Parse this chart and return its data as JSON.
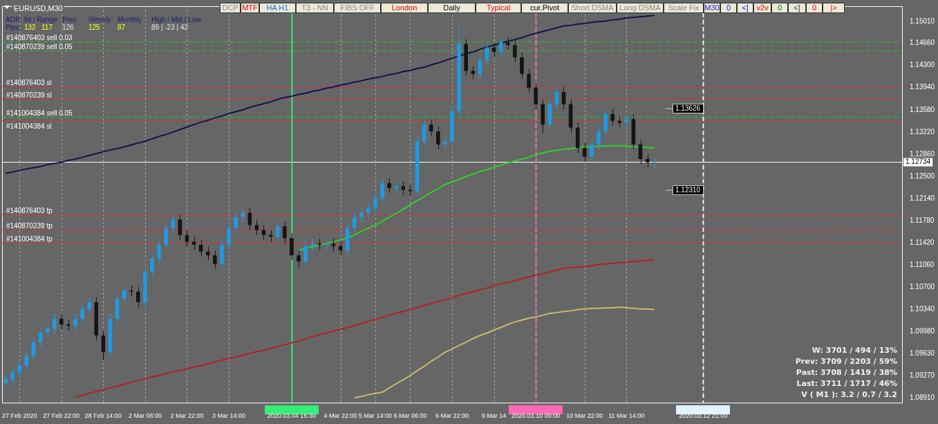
{
  "chart_data": {
    "type": "candlestick",
    "title": "EURUSD,M30",
    "categories": [
      null,
      null,
      "27 Feb 2020",
      null,
      null,
      null,
      null,
      null,
      "27 Feb 22:00",
      null,
      null,
      null,
      null,
      null,
      "28 Feb 14:00",
      null,
      null,
      null,
      null,
      null,
      "2 Mar 06:00",
      null,
      null,
      null,
      null,
      null,
      "2 Mar 22:00",
      null,
      null,
      null,
      null,
      null,
      "3 Mar 14:00",
      null,
      null,
      null,
      null,
      null,
      null,
      null,
      null,
      "2020.03.04 16:30",
      null,
      null,
      null,
      null,
      null,
      null,
      "4 Mar 22:00",
      null,
      null,
      null,
      null,
      "5 Mar 14:00",
      null,
      null,
      null,
      null,
      "6 Mar 06:00",
      null,
      null,
      null,
      null,
      null,
      "6 Mar 22:00",
      null,
      null,
      null,
      null,
      null,
      "9 Mar 14",
      null,
      null,
      null,
      null,
      null,
      "2020.03.10 09:00",
      null,
      null,
      null,
      null,
      null,
      null,
      "10 Mar 22:00",
      null,
      null,
      null,
      null,
      null,
      "11 Mar 14:00",
      null,
      null,
      null,
      null,
      null,
      null,
      null,
      null,
      null,
      null,
      "2020.03.12 21:00",
      null,
      null,
      null,
      null,
      null,
      null,
      null,
      null,
      null,
      null,
      null,
      null,
      null,
      null,
      null,
      null,
      null,
      null,
      null,
      null,
      null,
      null,
      null,
      null,
      null,
      null,
      null,
      null
    ],
    "ohlc": [
      [
        1.0915,
        1.0929,
        1.0907,
        1.0921
      ],
      [
        1.0921,
        1.094,
        1.0913,
        1.0932
      ],
      [
        1.0932,
        1.0951,
        1.0924,
        1.0943
      ],
      [
        1.0943,
        1.0967,
        1.0935,
        1.0959
      ],
      [
        1.0959,
        1.0989,
        1.0951,
        1.0981
      ],
      [
        1.0981,
        1.1005,
        1.0973,
        1.0997
      ],
      [
        1.0997,
        1.1011,
        1.0989,
        1.1003
      ],
      [
        1.1003,
        1.1027,
        1.0995,
        1.1019
      ],
      [
        1.1019,
        1.1027,
        1.1002,
        1.101
      ],
      [
        1.101,
        1.1018,
        1.1,
        1.1008
      ],
      [
        1.1008,
        1.1027,
        1.1,
        1.1019
      ],
      [
        1.1019,
        1.1043,
        1.1011,
        1.1035
      ],
      [
        1.1035,
        1.1054,
        1.1027,
        1.1046
      ],
      [
        1.1046,
        1.1054,
        1.0984,
        1.0992
      ],
      [
        1.0992,
        1.1,
        1.0952,
        1.0965
      ],
      [
        1.0965,
        1.1027,
        1.0957,
        1.1019
      ],
      [
        1.1019,
        1.106,
        1.1011,
        1.1052
      ],
      [
        1.1052,
        1.1073,
        1.1044,
        1.1065
      ],
      [
        1.1065,
        1.1073,
        1.1055,
        1.1063
      ],
      [
        1.1063,
        1.1071,
        1.1038,
        1.1046
      ],
      [
        1.1046,
        1.1103,
        1.1038,
        1.1095
      ],
      [
        1.1095,
        1.1125,
        1.1087,
        1.1117
      ],
      [
        1.1117,
        1.1147,
        1.1109,
        1.1139
      ],
      [
        1.1139,
        1.1174,
        1.1131,
        1.1166
      ],
      [
        1.1166,
        1.1188,
        1.1158,
        1.118
      ],
      [
        1.118,
        1.1188,
        1.1147,
        1.1155
      ],
      [
        1.1155,
        1.1163,
        1.1136,
        1.1144
      ],
      [
        1.1144,
        1.1152,
        1.1131,
        1.1139
      ],
      [
        1.1139,
        1.1147,
        1.112,
        1.1128
      ],
      [
        1.1128,
        1.1136,
        1.1114,
        1.1122
      ],
      [
        1.1122,
        1.113,
        1.11,
        1.1108
      ],
      [
        1.1108,
        1.1147,
        1.11,
        1.1139
      ],
      [
        1.1139,
        1.1174,
        1.1131,
        1.1166
      ],
      [
        1.1166,
        1.1192,
        1.1158,
        1.1184
      ],
      [
        1.1184,
        1.1199,
        1.1176,
        1.1191
      ],
      [
        1.1191,
        1.1199,
        1.1163,
        1.1171
      ],
      [
        1.1171,
        1.1179,
        1.1155,
        1.1163
      ],
      [
        1.1163,
        1.1171,
        1.1147,
        1.1155
      ],
      [
        1.1155,
        1.1163,
        1.1144,
        1.1152
      ],
      [
        1.1152,
        1.1177,
        1.1144,
        1.1169
      ],
      [
        1.1169,
        1.1177,
        1.1142,
        1.115
      ],
      [
        1.115,
        1.1158,
        1.1114,
        1.1122
      ],
      [
        1.1122,
        1.113,
        1.1101,
        1.1112
      ],
      [
        1.1112,
        1.1145,
        1.1104,
        1.1137
      ],
      [
        1.1137,
        1.1149,
        1.1129,
        1.1141
      ],
      [
        1.1141,
        1.1149,
        1.1131,
        1.1139
      ],
      [
        1.1139,
        1.1149,
        1.1131,
        1.1141
      ],
      [
        1.1141,
        1.1149,
        1.1129,
        1.1137
      ],
      [
        1.1137,
        1.1145,
        1.1122,
        1.113
      ],
      [
        1.113,
        1.1174,
        1.1122,
        1.1166
      ],
      [
        1.1166,
        1.1192,
        1.1158,
        1.1184
      ],
      [
        1.1184,
        1.1199,
        1.1176,
        1.1191
      ],
      [
        1.1191,
        1.1206,
        1.1183,
        1.1198
      ],
      [
        1.1198,
        1.1223,
        1.119,
        1.1215
      ],
      [
        1.1215,
        1.1247,
        1.1207,
        1.1239
      ],
      [
        1.1239,
        1.1247,
        1.1223,
        1.1231
      ],
      [
        1.1231,
        1.1242,
        1.1223,
        1.1234
      ],
      [
        1.1234,
        1.1242,
        1.122,
        1.1228
      ],
      [
        1.1228,
        1.1236,
        1.1218,
        1.1226
      ],
      [
        1.1226,
        1.1315,
        1.1218,
        1.1307
      ],
      [
        1.1307,
        1.1342,
        1.1299,
        1.1334
      ],
      [
        1.1334,
        1.1342,
        1.1315,
        1.1323
      ],
      [
        1.1323,
        1.1331,
        1.1294,
        1.1302
      ],
      [
        1.1302,
        1.1315,
        1.1294,
        1.1307
      ],
      [
        1.1307,
        1.1364,
        1.1299,
        1.1356
      ],
      [
        1.1356,
        1.1495,
        1.1348,
        1.1465
      ],
      [
        1.1465,
        1.1473,
        1.1413,
        1.1421
      ],
      [
        1.1421,
        1.1429,
        1.1408,
        1.1416
      ],
      [
        1.1416,
        1.1446,
        1.1408,
        1.1438
      ],
      [
        1.1438,
        1.1467,
        1.143,
        1.1459
      ],
      [
        1.1459,
        1.1467,
        1.1444,
        1.1452
      ],
      [
        1.1452,
        1.1475,
        1.1444,
        1.1467
      ],
      [
        1.1467,
        1.1475,
        1.1455,
        1.1463
      ],
      [
        1.1463,
        1.1471,
        1.1435,
        1.1443
      ],
      [
        1.1443,
        1.1451,
        1.1408,
        1.1416
      ],
      [
        1.1416,
        1.1424,
        1.1386,
        1.1394
      ],
      [
        1.1394,
        1.1402,
        1.1359,
        1.1367
      ],
      [
        1.1367,
        1.1375,
        1.132,
        1.1334
      ],
      [
        1.1334,
        1.1375,
        1.1326,
        1.1367
      ],
      [
        1.1367,
        1.1395,
        1.1359,
        1.1387
      ],
      [
        1.1387,
        1.1395,
        1.1359,
        1.1367
      ],
      [
        1.1367,
        1.1375,
        1.1321,
        1.1329
      ],
      [
        1.1329,
        1.1337,
        1.1288,
        1.1296
      ],
      [
        1.1296,
        1.1304,
        1.1274,
        1.1282
      ],
      [
        1.1282,
        1.131,
        1.1274,
        1.1302
      ],
      [
        1.1302,
        1.1331,
        1.1294,
        1.1323
      ],
      [
        1.1323,
        1.1359,
        1.1315,
        1.1351
      ],
      [
        1.1351,
        1.1359,
        1.1332,
        1.134
      ],
      [
        1.134,
        1.1348,
        1.1329,
        1.1337
      ],
      [
        1.1337,
        1.1351,
        1.1329,
        1.1343
      ],
      [
        1.1343,
        1.1351,
        1.1294,
        1.1302
      ],
      [
        1.1302,
        1.131,
        1.127,
        1.1278
      ],
      [
        1.1278,
        1.1286,
        1.1265,
        1.1273
      ],
      [
        1.1273,
        1.1281,
        1.1262,
        1.1273
      ],
      null,
      null,
      null,
      null,
      null,
      null,
      null,
      null,
      null,
      null,
      null,
      null,
      null,
      null,
      null,
      null,
      null,
      null,
      null,
      null,
      null,
      null,
      null,
      null,
      null,
      null,
      null,
      null,
      null,
      null,
      null,
      null,
      null,
      null,
      null
    ],
    "colors": [
      "#1e9be6",
      "#1e9be6",
      "#1e9be6",
      "#1e9be6",
      "#1e9be6",
      "#1e9be6",
      "#1e9be6",
      "#1e9be6",
      "#141414",
      "#141414",
      "#1e9be6",
      "#1e9be6",
      "#1e9be6",
      "#141414",
      "#141414",
      "#1e9be6",
      "#1e9be6",
      "#1e9be6",
      "#141414",
      "#141414",
      "#1e9be6",
      "#1e9be6",
      "#1e9be6",
      "#1e9be6",
      "#1e9be6",
      "#141414",
      "#141414",
      "#141414",
      "#141414",
      "#141414",
      "#141414",
      "#1e9be6",
      "#1e9be6",
      "#1e9be6",
      "#1e9be6",
      "#141414",
      "#141414",
      "#141414",
      "#141414",
      "#1e9be6",
      "#141414",
      "#141414",
      "#141414",
      "#1e9be6",
      "#1e9be6",
      "#141414",
      "#1e9be6",
      "#141414",
      "#141414",
      "#1e9be6",
      "#1e9be6",
      "#1e9be6",
      "#1e9be6",
      "#1e9be6",
      "#1e9be6",
      "#141414",
      "#1e9be6",
      "#141414",
      "#141414",
      "#1e9be6",
      "#1e9be6",
      "#141414",
      "#141414",
      "#1e9be6",
      "#1e9be6",
      "#1e9be6",
      "#141414",
      "#141414",
      "#1e9be6",
      "#1e9be6",
      "#141414",
      "#1e9be6",
      "#141414",
      "#141414",
      "#141414",
      "#141414",
      "#141414",
      "#141414",
      "#1e9be6",
      "#1e9be6",
      "#141414",
      "#141414",
      "#141414",
      "#141414",
      "#1e9be6",
      "#1e9be6",
      "#1e9be6",
      "#141414",
      "#141414",
      "#1e9be6",
      "#141414",
      "#141414",
      "#141414",
      "#1e9be6",
      null,
      null,
      null,
      null,
      null,
      null,
      null,
      null,
      null,
      null,
      null,
      null,
      null,
      null,
      null,
      null,
      null,
      null,
      null,
      null,
      null,
      null,
      null,
      null,
      null,
      null,
      null,
      null,
      null,
      null,
      null,
      null,
      null,
      null,
      null
    ],
    "series": [
      {
        "type": "line",
        "color": "#12124e",
        "values": [
          1.1255,
          1.1257,
          1.126,
          1.1262,
          1.1264,
          1.1266,
          1.1269,
          1.1271,
          1.1273,
          1.1276,
          1.1278,
          1.1281,
          1.1284,
          1.1287,
          1.129,
          1.1293,
          1.1295,
          1.1298,
          1.1301,
          1.1304,
          1.1307,
          1.1311,
          1.1315,
          1.1318,
          1.1322,
          1.1326,
          1.133,
          1.1334,
          1.1338,
          1.1341,
          1.1345,
          1.1348,
          1.1352,
          1.1355,
          1.1358,
          1.1362,
          1.1365,
          1.1368,
          1.1371,
          1.1375,
          1.1378,
          1.138,
          1.1383,
          1.1385,
          1.1388,
          1.139,
          1.1393,
          1.1395,
          1.1398,
          1.14,
          1.1403,
          1.1405,
          1.1408,
          1.141,
          1.1412,
          1.1415,
          1.1417,
          1.142,
          1.1422,
          1.1425,
          1.1427,
          1.1431,
          1.1434,
          1.1438,
          1.1442,
          1.1445,
          1.1449,
          1.1452,
          1.1456,
          1.146,
          1.1463,
          1.1466,
          1.1469,
          1.1472,
          1.1475,
          1.1479,
          1.1482,
          1.1485,
          1.1488,
          1.1491,
          1.1494,
          1.1495,
          1.1497,
          1.1498,
          1.15,
          1.1501,
          1.1502,
          1.1504,
          1.1505,
          1.1507,
          1.1508,
          1.1509,
          1.151,
          1.1511,
          null,
          null,
          null,
          null,
          null,
          null,
          null,
          null,
          null,
          null,
          null,
          null,
          null,
          null,
          null,
          null,
          null,
          null,
          null,
          null,
          null,
          null,
          null,
          null,
          null,
          null,
          null,
          null,
          null,
          null,
          null,
          null,
          null,
          null,
          null
        ]
      },
      {
        "type": "line",
        "color": "#b22222",
        "values": [
          null,
          null,
          null,
          null,
          null,
          null,
          null,
          null,
          null,
          null,
          1.0892,
          1.0895,
          1.0898,
          1.0901,
          1.0904,
          1.0907,
          1.091,
          1.0913,
          1.0916,
          1.0919,
          1.0922,
          1.0925,
          1.0927,
          1.093,
          1.0933,
          1.0935,
          1.0938,
          1.0941,
          1.0943,
          1.0946,
          1.0949,
          1.0952,
          1.0955,
          1.0957,
          1.096,
          1.0963,
          1.0966,
          1.0968,
          1.0971,
          1.0974,
          1.0977,
          1.098,
          1.0983,
          1.0986,
          1.099,
          1.0993,
          1.0996,
          1.0999,
          1.1002,
          1.1005,
          1.1008,
          1.1011,
          1.1015,
          1.1018,
          1.1021,
          1.1025,
          1.1028,
          1.1031,
          1.1034,
          1.1037,
          1.1041,
          1.1044,
          1.1047,
          1.105,
          1.1053,
          1.1057,
          1.106,
          1.1063,
          1.1066,
          1.1069,
          1.1073,
          1.1076,
          1.1078,
          1.1081,
          1.1084,
          1.1087,
          1.109,
          1.1092,
          1.1095,
          1.1098,
          1.1101,
          1.1102,
          1.1103,
          1.1104,
          1.1105,
          1.1107,
          1.1108,
          1.1109,
          1.111,
          1.1111,
          1.1112,
          1.1113,
          1.1114,
          1.1115,
          null,
          null,
          null,
          null,
          null,
          null,
          null,
          null,
          null,
          null,
          null,
          null,
          null,
          null,
          null,
          null,
          null,
          null,
          null,
          null,
          null,
          null,
          null,
          null,
          null,
          null,
          null,
          null,
          null,
          null,
          null,
          null,
          null,
          null,
          null
        ]
      },
      {
        "type": "line",
        "color": "#32cd32",
        "values": [
          null,
          null,
          null,
          null,
          null,
          null,
          null,
          null,
          null,
          null,
          null,
          null,
          null,
          null,
          null,
          null,
          null,
          null,
          null,
          null,
          null,
          null,
          null,
          null,
          null,
          null,
          null,
          null,
          null,
          null,
          null,
          null,
          null,
          null,
          null,
          null,
          null,
          null,
          null,
          null,
          null,
          null,
          1.113,
          1.1133,
          1.1136,
          1.1139,
          1.1141,
          1.1144,
          1.1147,
          1.115,
          1.1155,
          1.1161,
          1.1166,
          1.1171,
          1.1177,
          1.1184,
          1.119,
          1.1197,
          1.1204,
          1.1211,
          1.1217,
          1.1224,
          1.123,
          1.1237,
          1.1241,
          1.1245,
          1.125,
          1.1254,
          1.1258,
          1.1261,
          1.1265,
          1.1268,
          1.1272,
          1.1275,
          1.1278,
          1.1281,
          1.1285,
          1.1288,
          1.1291,
          1.1292,
          1.1294,
          1.1295,
          1.1297,
          1.1298,
          1.1298,
          1.1299,
          1.1299,
          1.13,
          1.13,
          1.1299,
          1.1298,
          1.1298,
          1.1297,
          1.1296,
          null,
          null,
          null,
          null,
          null,
          null,
          null,
          null,
          null,
          null,
          null,
          null,
          null,
          null,
          null,
          null,
          null,
          null,
          null,
          null,
          null,
          null,
          null,
          null,
          null,
          null,
          null,
          null,
          null,
          null,
          null,
          null,
          null,
          null,
          null
        ]
      },
      {
        "type": "line",
        "color": "#c8b96e",
        "values": [
          null,
          null,
          null,
          null,
          null,
          null,
          null,
          null,
          null,
          null,
          null,
          null,
          null,
          null,
          null,
          null,
          null,
          null,
          null,
          null,
          null,
          null,
          null,
          null,
          null,
          null,
          null,
          null,
          null,
          null,
          null,
          null,
          null,
          null,
          null,
          null,
          null,
          null,
          null,
          null,
          null,
          null,
          null,
          null,
          null,
          null,
          null,
          null,
          null,
          null,
          1.0891,
          1.0893,
          1.0896,
          1.0898,
          1.09,
          1.0907,
          1.0914,
          1.092,
          1.0927,
          1.0935,
          1.0942,
          1.095,
          1.0957,
          1.0965,
          1.097,
          1.0976,
          1.0981,
          1.0987,
          1.0992,
          1.0996,
          1.1001,
          1.1005,
          1.101,
          1.1014,
          1.1017,
          1.102,
          1.1022,
          1.1025,
          1.1028,
          1.1029,
          1.1031,
          1.1032,
          1.1034,
          1.1035,
          1.1036,
          1.1036,
          1.1037,
          1.1037,
          1.1038,
          1.1037,
          1.1036,
          1.1035,
          1.1035,
          1.1034,
          null,
          null,
          null,
          null,
          null,
          null,
          null,
          null,
          null,
          null,
          null,
          null,
          null,
          null,
          null,
          null,
          null,
          null,
          null,
          null,
          null,
          null,
          null,
          null,
          null,
          null,
          null,
          null,
          null,
          null,
          null,
          null,
          null,
          null,
          null
        ]
      }
    ],
    "marker": "none",
    "ylim": [
      1.0883,
      1.1526
    ],
    "yticks": [
      {
        "value": 1.0891,
        "label": "1.08910"
      },
      {
        "value": 1.0927,
        "label": "1.09270"
      },
      {
        "value": 1.0963,
        "label": "1.09630"
      },
      {
        "value": 1.0998,
        "label": "1.09980"
      },
      {
        "value": 1.1034,
        "label": "1.10340"
      },
      {
        "value": 1.107,
        "label": "1.10700"
      },
      {
        "value": 1.1106,
        "label": "1.11060"
      },
      {
        "value": 1.1142,
        "label": "1.11420"
      },
      {
        "value": 1.1178,
        "label": "1.11780"
      },
      {
        "value": 1.1214,
        "label": "1.12140"
      },
      {
        "value": 1.125,
        "label": "1.12500"
      },
      {
        "value": 1.1286,
        "label": "1.12860"
      },
      {
        "value": 1.1322,
        "label": "1.13220"
      },
      {
        "value": 1.1358,
        "label": "1.13580"
      },
      {
        "value": 1.1394,
        "label": "1.13940"
      },
      {
        "value": 1.143,
        "label": "1.14300"
      },
      {
        "value": 1.1466,
        "label": "1.14660"
      },
      {
        "value": 1.1501,
        "label": "1.15010"
      }
    ],
    "grid": "x",
    "ref_lines": [
      {
        "axis": "y",
        "value": 1.1469,
        "label": "#140876403 sell 0.03",
        "color": "#22cc22",
        "line_style": "dashed"
      },
      {
        "axis": "y",
        "value": 1.1454,
        "label": "#140870239 sell 0.05",
        "color": "#22cc22",
        "line_style": "dashed"
      },
      {
        "axis": "y",
        "value": 1.1396,
        "label": "#140876403 sl",
        "color": "#ff2020",
        "line_style": "dashed"
      },
      {
        "axis": "y",
        "value": 1.1376,
        "label": "#140870239 sl",
        "color": "#ff2020",
        "line_style": "dashed"
      },
      {
        "axis": "y",
        "value": 1.1346,
        "label": "#141004384 sell 0.05",
        "color": "#22cc22",
        "line_style": "dashed"
      },
      {
        "axis": "y",
        "value": 1.1341,
        "label": "#141004384 sl",
        "color": "#ff2020",
        "line_style": "dashed"
      },
      {
        "axis": "y",
        "value": 1.1188,
        "label": "#140876403 tp",
        "color": "#ff2020",
        "line_style": "dashed"
      },
      {
        "axis": "y",
        "value": 1.1164,
        "label": "#140870239 tp",
        "color": "#ff2020",
        "line_style": "dashed"
      },
      {
        "axis": "y",
        "value": 1.1142,
        "label": "#141004384 tp",
        "color": "#ff2020",
        "line_style": "dashed"
      },
      {
        "axis": "y",
        "value": 1.12734,
        "label": "1.12734",
        "color": "#ffffff",
        "line_style": "solid"
      },
      {
        "axis": "x",
        "value": "2020.03.04 16:30",
        "color": "#33ee77",
        "line_style": "solid"
      },
      {
        "axis": "x",
        "value": "2020.03.10 09:00",
        "color": "#ff69b4",
        "line_style": "dashed"
      },
      {
        "axis": "x",
        "value": "2020.03.12 21:00",
        "color": "#dff4ff",
        "line_style": "dashed"
      }
    ],
    "annotations": [
      "ADR",
      "9d / Range",
      "Prev",
      "Weekly",
      "Monthly",
      "High / Mid / Low",
      "Pips:",
      "132",
      "117",
      "126",
      "125",
      "87",
      "89 | -23 | 42",
      "W: 3701 / 494 / 13%",
      "Prev: 3709 / 2203 / 59%",
      "Past: 3708 / 1419 / 38%",
      "Last: 3711 / 1717 / 46%",
      "V ( M1 ): 3.2 / 0.7 / 3.2",
      "DCP",
      "MTF",
      "HA H1",
      "T3 - NN",
      "FIBS OFF",
      "London",
      "Daily",
      "Typical",
      "cur.Pivot",
      "Short DSMA",
      "Long DSMA",
      "Scale Fix",
      "M30",
      "0",
      "<]",
      "v2v",
      "0",
      "<]",
      "0",
      "|>",
      "1.13626",
      "1.12310"
    ]
  }
}
